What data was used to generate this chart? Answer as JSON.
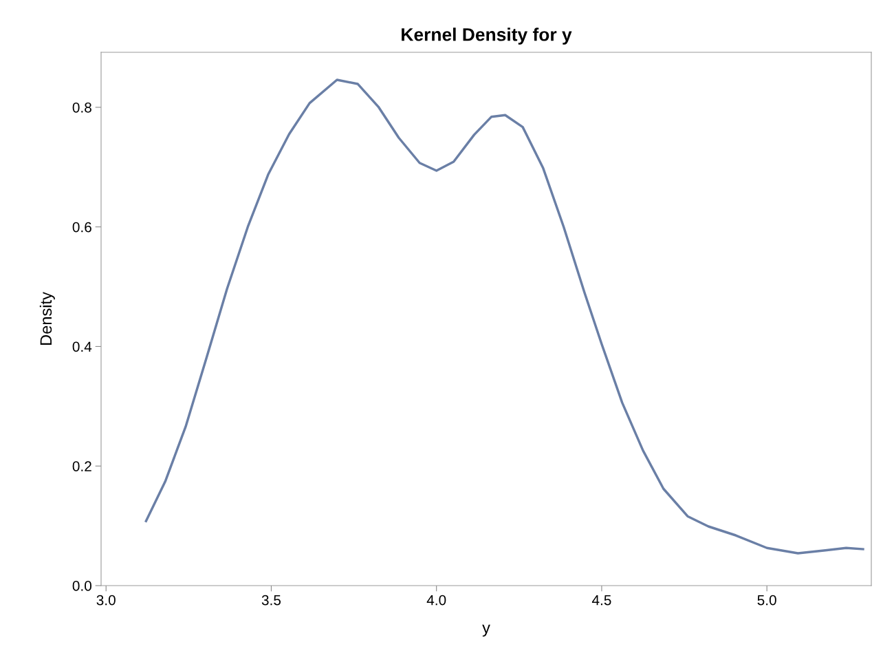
{
  "chart_data": {
    "type": "line",
    "title": "Kernel Density for y",
    "xlabel": "y",
    "ylabel": "Density",
    "x": [
      3.121,
      3.179,
      3.241,
      3.304,
      3.366,
      3.429,
      3.491,
      3.554,
      3.616,
      3.699,
      3.762,
      3.824,
      3.886,
      3.949,
      4.0,
      4.052,
      4.114,
      4.166,
      4.208,
      4.261,
      4.323,
      4.385,
      4.448,
      4.5,
      4.562,
      4.625,
      4.687,
      4.76,
      4.823,
      4.906,
      5.0,
      5.094,
      5.177,
      5.24,
      5.291
    ],
    "series": [
      {
        "color": "#6a7fa6",
        "values": [
          0.108,
          0.174,
          0.266,
          0.381,
          0.496,
          0.6,
          0.688,
          0.755,
          0.807,
          0.846,
          0.839,
          0.801,
          0.749,
          0.707,
          0.694,
          0.709,
          0.754,
          0.784,
          0.787,
          0.767,
          0.698,
          0.6,
          0.49,
          0.404,
          0.306,
          0.226,
          0.162,
          0.116,
          0.099,
          0.084,
          0.063,
          0.054,
          0.059,
          0.063,
          0.061
        ]
      }
    ],
    "xlim": [
      2.985,
      5.316
    ],
    "ylim": [
      0.0,
      0.892
    ],
    "xticks": [
      {
        "value": 3.0,
        "label": "3.0"
      },
      {
        "value": 3.5,
        "label": "3.5"
      },
      {
        "value": 4.0,
        "label": "4.0"
      },
      {
        "value": 4.5,
        "label": "4.5"
      },
      {
        "value": 5.0,
        "label": "5.0"
      }
    ],
    "yticks": [
      {
        "value": 0.0,
        "label": "0.0"
      },
      {
        "value": 0.2,
        "label": "0.2"
      },
      {
        "value": 0.4,
        "label": "0.4"
      },
      {
        "value": 0.6,
        "label": "0.6"
      },
      {
        "value": 0.8,
        "label": "0.8"
      }
    ],
    "grid": false,
    "legend": false,
    "marker": "none",
    "line_style": "solid"
  }
}
